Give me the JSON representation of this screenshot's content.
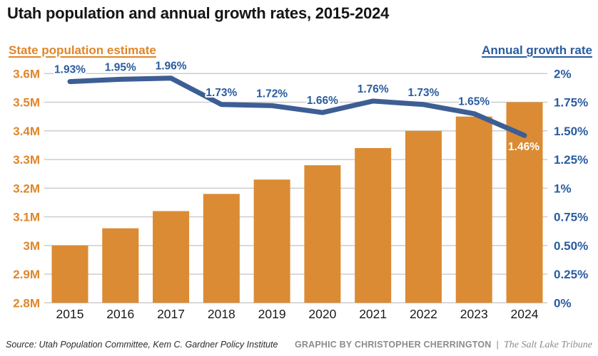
{
  "title": "Utah population and annual growth rates, 2015-2024",
  "legend": {
    "left_label": "State population estimate",
    "right_label": "Annual growth rate"
  },
  "footer": {
    "source": "Source: Utah Population Committee, Kem C. Gardner Policy Institute",
    "credit": "GRAPHIC BY CHRISTOPHER CHERRINGTON",
    "separator": "|",
    "publication": "The Salt Lake Tribune"
  },
  "colors": {
    "bar_orange": "#db8b33",
    "axis_orange": "#df862a",
    "line_blue": "#3d5e94",
    "label_blue": "#2a5ca0",
    "gridline_gray": "#c9c9c9",
    "year_black": "#1a1a1a",
    "white": "#ffffff"
  },
  "chart_data": {
    "type": "bar+line combo",
    "title": "Utah population and annual growth rates, 2015-2024",
    "categories": [
      "2015",
      "2016",
      "2017",
      "2018",
      "2019",
      "2020",
      "2021",
      "2022",
      "2023",
      "2024"
    ],
    "series": [
      {
        "name": "State population estimate",
        "type": "bar",
        "axis": "left",
        "unit": "millions",
        "values": [
          3.0,
          3.06,
          3.12,
          3.18,
          3.23,
          3.28,
          3.34,
          3.4,
          3.45,
          3.5
        ]
      },
      {
        "name": "Annual growth rate",
        "type": "line",
        "axis": "right",
        "unit": "percent",
        "values": [
          1.93,
          1.95,
          1.96,
          1.73,
          1.72,
          1.66,
          1.76,
          1.73,
          1.65,
          1.46
        ],
        "point_labels": [
          "1.93%",
          "1.95%",
          "1.96%",
          "1.73%",
          "1.72%",
          "1.66%",
          "1.76%",
          "1.73%",
          "1.65%",
          "1.46%"
        ]
      }
    ],
    "left_axis": {
      "label": "State population estimate",
      "ticks": [
        "3.6M",
        "3.5M",
        "3.4M",
        "3.3M",
        "3.2M",
        "3.1M",
        "3M",
        "2.9M",
        "2.8M"
      ],
      "tick_values": [
        3.6,
        3.5,
        3.4,
        3.3,
        3.2,
        3.1,
        3.0,
        2.9,
        2.8
      ],
      "min": 2.8,
      "max": 3.6
    },
    "right_axis": {
      "label": "Annual growth rate",
      "ticks": [
        "2%",
        "1.75%",
        "1.50%",
        "1.25%",
        "1%",
        "0.75%",
        "0.50%",
        "0.25%",
        "0%"
      ],
      "tick_values": [
        2.0,
        1.75,
        1.5,
        1.25,
        1.0,
        0.75,
        0.5,
        0.25,
        0
      ],
      "min": 0,
      "max": 2
    },
    "grid": true,
    "legend_position": "top (left/right headers)"
  }
}
